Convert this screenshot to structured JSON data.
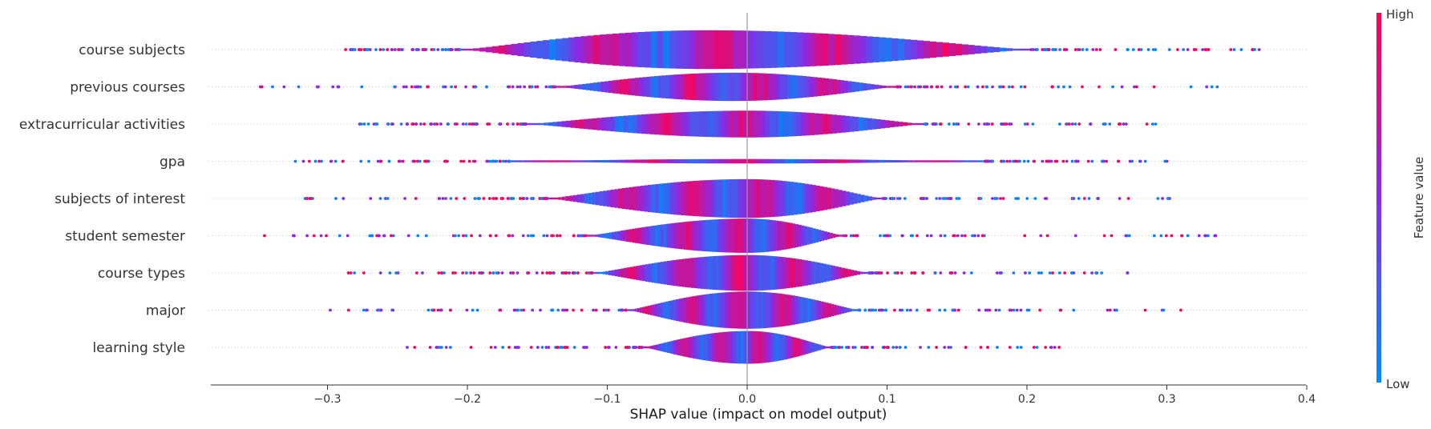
{
  "chart_data": {
    "type": "violin",
    "title": "",
    "xlabel": "SHAP value (impact on model output)",
    "ylabel": "",
    "xlim": [
      -0.385,
      0.4
    ],
    "xticks": [
      {
        "value": -0.3,
        "label": "−0.3"
      },
      {
        "value": -0.2,
        "label": "−0.2"
      },
      {
        "value": -0.1,
        "label": "−0.1"
      },
      {
        "value": 0.0,
        "label": "0.0"
      },
      {
        "value": 0.1,
        "label": "0.1"
      },
      {
        "value": 0.2,
        "label": "0.2"
      },
      {
        "value": 0.3,
        "label": "0.3"
      },
      {
        "value": 0.4,
        "label": "0.4"
      }
    ],
    "grid": false,
    "colorbar": {
      "title": "Feature value",
      "high_label": "High",
      "low_label": "Low",
      "low_color": "#008bfb",
      "high_color": "#ff0051"
    },
    "features": [
      {
        "name": "course subjects",
        "range": [
          -0.287,
          0.366
        ],
        "body": [
          -0.205,
          0.203
        ],
        "max_half_height": 0.52,
        "peak_at": -0.03
      },
      {
        "name": "previous courses",
        "range": [
          -0.348,
          0.336
        ],
        "body": [
          -0.137,
          0.107
        ],
        "max_half_height": 0.38,
        "peak_at": -0.01
      },
      {
        "name": "extracurricular activities",
        "range": [
          -0.277,
          0.292
        ],
        "body": [
          -0.158,
          0.127
        ],
        "max_half_height": 0.36,
        "peak_at": 0.0
      },
      {
        "name": "gpa",
        "range": [
          -0.323,
          0.3
        ],
        "body": [
          -0.17,
          0.17
        ],
        "max_half_height": 0.06,
        "peak_at": 0.0
      },
      {
        "name": "subjects of interest",
        "range": [
          -0.316,
          0.302
        ],
        "body": [
          -0.143,
          0.097
        ],
        "max_half_height": 0.52,
        "peak_at": 0.0
      },
      {
        "name": "student semester",
        "range": [
          -0.345,
          0.335
        ],
        "body": [
          -0.115,
          0.069
        ],
        "max_half_height": 0.46,
        "peak_at": 0.0
      },
      {
        "name": "course types",
        "range": [
          -0.285,
          0.272
        ],
        "body": [
          -0.11,
          0.087
        ],
        "max_half_height": 0.48,
        "peak_at": 0.0
      },
      {
        "name": "major",
        "range": [
          -0.298,
          0.31
        ],
        "body": [
          -0.086,
          0.08
        ],
        "max_half_height": 0.5,
        "peak_at": 0.0
      },
      {
        "name": "learning style",
        "range": [
          -0.243,
          0.223
        ],
        "body": [
          -0.075,
          0.06
        ],
        "max_half_height": 0.44,
        "peak_at": 0.0
      }
    ]
  }
}
